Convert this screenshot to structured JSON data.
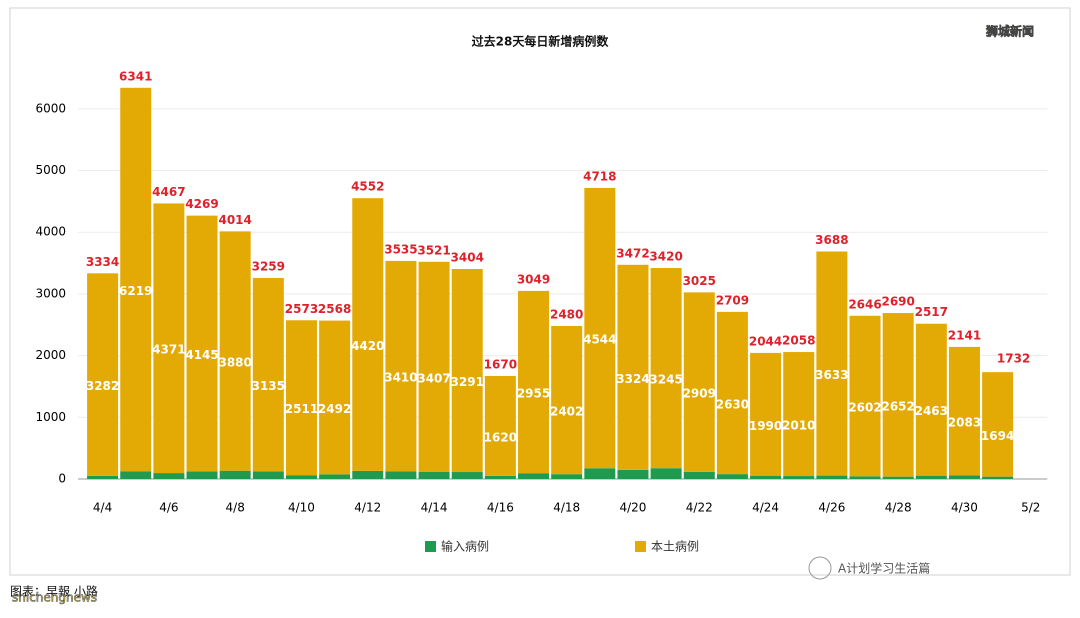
{
  "chart_data": {
    "type": "stacked-bar",
    "title": "过去28天每日新增病例数",
    "categories": [
      "4/4",
      null,
      "4/6",
      null,
      "4/8",
      null,
      "4/10",
      null,
      "4/12",
      null,
      "4/14",
      null,
      "4/16",
      null,
      "4/18",
      null,
      "4/20",
      null,
      "4/22",
      null,
      "4/24",
      null,
      "4/26",
      null,
      "4/28",
      null,
      "4/30",
      null,
      "5/2"
    ],
    "series": [
      {
        "name": "输入病例",
        "color": "#1f9b4f",
        "values": [
          52,
          122,
          96,
          124,
          134,
          124,
          62,
          76,
          132,
          125,
          114,
          113,
          50,
          94,
          78,
          174,
          148,
          175,
          116,
          79,
          54,
          48,
          55,
          44,
          38,
          54,
          58,
          38,
          null
        ]
      },
      {
        "name": "本土病例",
        "color": "#e3aa06",
        "values": [
          3282,
          6219,
          4371,
          4145,
          3880,
          3135,
          2511,
          2492,
          4420,
          3410,
          3407,
          3291,
          1620,
          2955,
          2402,
          4544,
          3324,
          3245,
          2909,
          2630,
          1990,
          2010,
          3633,
          2602,
          2652,
          2463,
          2083,
          1694,
          null
        ]
      }
    ],
    "totals": [
      3334,
      6341,
      4467,
      4269,
      4014,
      3259,
      2573,
      2568,
      4552,
      3535,
      3521,
      3404,
      1670,
      3049,
      2480,
      4718,
      3472,
      3420,
      3025,
      2709,
      2044,
      2058,
      3688,
      2646,
      2690,
      2517,
      2141,
      1732,
      null
    ],
    "ylim": [
      0,
      6500
    ],
    "yticks": [
      0,
      1000,
      2000,
      3000,
      4000,
      5000,
      6000
    ],
    "grid": true,
    "total_color": "#e0202a",
    "source": "图表：早報 小路",
    "watermarks": [
      "狮城新闻",
      "shichengnews",
      "A计划学习生活篇"
    ]
  }
}
